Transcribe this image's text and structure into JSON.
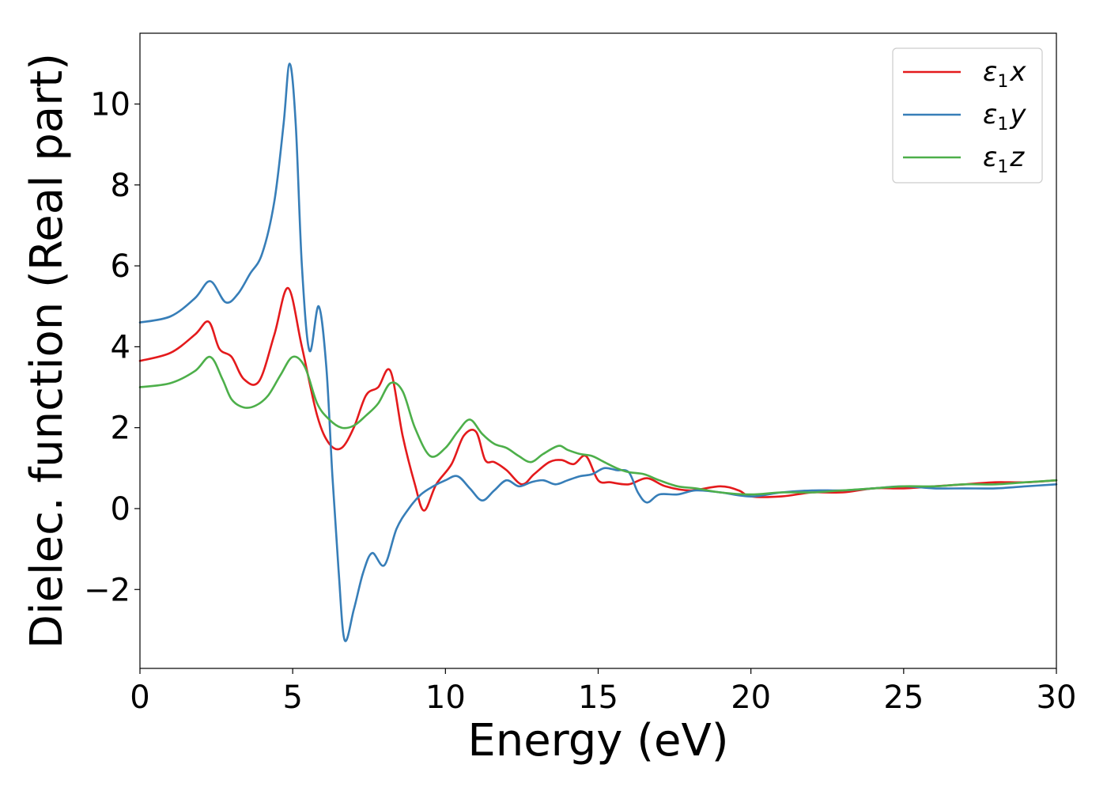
{
  "chart_data": {
    "type": "line",
    "xlabel": "Energy (eV)",
    "ylabel": "Dielec. function (Real part)",
    "xlim": [
      0,
      30
    ],
    "ylim": [
      -3.95,
      11.75
    ],
    "xticks": [
      0,
      5,
      10,
      15,
      20,
      25,
      30
    ],
    "xtick_labels": [
      "0",
      "5",
      "10",
      "15",
      "20",
      "25",
      "30"
    ],
    "yticks": [
      -2,
      0,
      2,
      4,
      6,
      8,
      10
    ],
    "ytick_labels": [
      "−2",
      "0",
      "2",
      "4",
      "6",
      "8",
      "10"
    ],
    "grid": false,
    "legend_position": "top-right",
    "series": [
      {
        "name": "ε1x",
        "legend_main": "ε",
        "legend_sub": "1",
        "legend_var": "x",
        "color": "#e41a1c",
        "x": [
          0,
          1,
          1.8,
          2.25,
          2.6,
          3.0,
          3.4,
          3.9,
          4.4,
          4.85,
          5.3,
          5.8,
          6.2,
          6.6,
          7.0,
          7.4,
          7.8,
          8.2,
          8.6,
          9.0,
          9.3,
          9.7,
          10.2,
          10.6,
          11.0,
          11.3,
          11.6,
          12.0,
          12.5,
          12.9,
          13.4,
          13.8,
          14.2,
          14.6,
          15.0,
          15.4,
          16.0,
          16.6,
          17.2,
          18.0,
          19.0,
          19.6,
          20.0,
          21.0,
          22.0,
          23.0,
          24.0,
          25.0,
          26.0,
          27.0,
          28.0,
          29.0,
          30.0
        ],
        "y": [
          3.65,
          3.85,
          4.3,
          4.62,
          3.95,
          3.75,
          3.2,
          3.15,
          4.3,
          5.45,
          4.0,
          2.3,
          1.6,
          1.5,
          2.0,
          2.8,
          3.0,
          3.4,
          1.8,
          0.6,
          -0.05,
          0.6,
          1.1,
          1.8,
          1.9,
          1.2,
          1.15,
          0.95,
          0.6,
          0.85,
          1.15,
          1.2,
          1.1,
          1.3,
          0.7,
          0.65,
          0.6,
          0.75,
          0.55,
          0.45,
          0.55,
          0.45,
          0.3,
          0.3,
          0.4,
          0.4,
          0.5,
          0.5,
          0.55,
          0.6,
          0.65,
          0.65,
          0.7
        ]
      },
      {
        "name": "ε1y",
        "legend_main": "ε",
        "legend_sub": "1",
        "legend_var": "y",
        "color": "#377eb8",
        "x": [
          0,
          1,
          1.8,
          2.3,
          2.8,
          3.2,
          3.6,
          4.0,
          4.4,
          4.7,
          4.9,
          5.1,
          5.3,
          5.55,
          5.85,
          6.1,
          6.3,
          6.5,
          6.7,
          7.0,
          7.3,
          7.6,
          8.0,
          8.4,
          8.8,
          9.2,
          9.6,
          10.0,
          10.4,
          10.8,
          11.2,
          11.6,
          12.0,
          12.4,
          12.8,
          13.2,
          13.6,
          14.0,
          14.4,
          14.8,
          15.2,
          15.6,
          16.0,
          16.3,
          16.6,
          17.0,
          17.6,
          18.2,
          19.0,
          20.0,
          21.0,
          22.0,
          23.0,
          24.0,
          25.0,
          26.0,
          27.0,
          28.0,
          29.0,
          30.0
        ],
        "y": [
          4.6,
          4.75,
          5.2,
          5.62,
          5.1,
          5.3,
          5.8,
          6.3,
          7.6,
          9.5,
          11.0,
          9.5,
          6.0,
          3.9,
          5.0,
          3.5,
          0.8,
          -1.5,
          -3.25,
          -2.5,
          -1.6,
          -1.1,
          -1.4,
          -0.5,
          0.0,
          0.35,
          0.55,
          0.7,
          0.8,
          0.5,
          0.2,
          0.45,
          0.7,
          0.55,
          0.65,
          0.7,
          0.6,
          0.7,
          0.8,
          0.85,
          1.0,
          0.95,
          0.9,
          0.4,
          0.15,
          0.35,
          0.35,
          0.45,
          0.4,
          0.3,
          0.4,
          0.45,
          0.45,
          0.5,
          0.55,
          0.5,
          0.5,
          0.5,
          0.55,
          0.6
        ]
      },
      {
        "name": "ε1z",
        "legend_main": "ε",
        "legend_sub": "1",
        "legend_var": "z",
        "color": "#4daf4a",
        "x": [
          0,
          1,
          1.8,
          2.3,
          2.7,
          3.0,
          3.4,
          3.8,
          4.2,
          4.6,
          5.0,
          5.4,
          5.8,
          6.2,
          6.6,
          7.0,
          7.4,
          7.8,
          8.2,
          8.6,
          9.0,
          9.5,
          10.0,
          10.4,
          10.8,
          11.2,
          11.6,
          12.0,
          12.4,
          12.8,
          13.2,
          13.7,
          14.0,
          14.4,
          14.8,
          15.2,
          15.6,
          16.0,
          16.5,
          17.0,
          17.6,
          18.2,
          19.0,
          20.0,
          21.0,
          22.0,
          23.0,
          24.0,
          25.0,
          26.0,
          27.0,
          28.0,
          29.0,
          30.0
        ],
        "y": [
          3.0,
          3.1,
          3.4,
          3.75,
          3.2,
          2.7,
          2.5,
          2.55,
          2.8,
          3.3,
          3.75,
          3.5,
          2.6,
          2.2,
          2.0,
          2.05,
          2.3,
          2.6,
          3.1,
          2.9,
          2.0,
          1.3,
          1.5,
          1.9,
          2.2,
          1.85,
          1.6,
          1.5,
          1.3,
          1.15,
          1.35,
          1.55,
          1.45,
          1.35,
          1.3,
          1.15,
          1.0,
          0.9,
          0.85,
          0.7,
          0.55,
          0.5,
          0.4,
          0.35,
          0.4,
          0.4,
          0.45,
          0.5,
          0.55,
          0.55,
          0.6,
          0.6,
          0.65,
          0.7
        ]
      }
    ]
  }
}
